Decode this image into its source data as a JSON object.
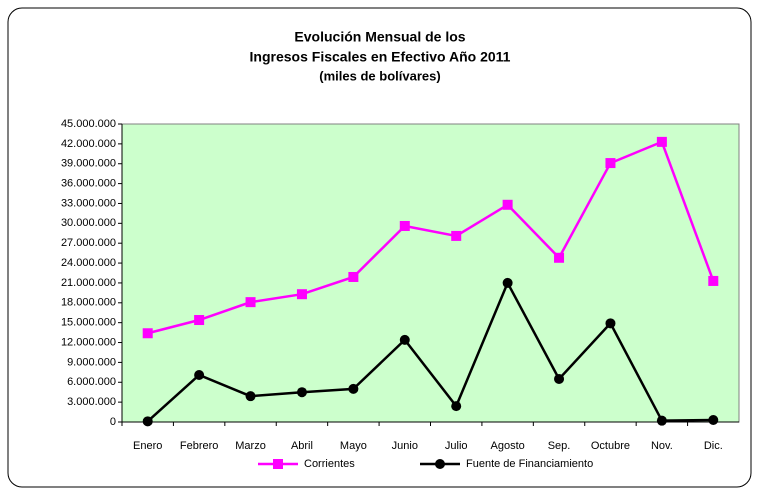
{
  "chart_data": {
    "type": "line",
    "title": [
      "Evolución Mensual de los",
      "Ingresos Fiscales en Efectivo Año 2011",
      "(miles de bolívares)"
    ],
    "categories": [
      "Enero",
      "Febrero",
      "Marzo",
      "Abril",
      "Mayo",
      "Junio",
      "Julio",
      "Agosto",
      "Sep.",
      "Octubre",
      "Nov.",
      "Dic."
    ],
    "series": [
      {
        "name": "Corrientes",
        "color": "#ff00ff",
        "marker": "square",
        "values": [
          13400000,
          15400000,
          18100000,
          19300000,
          21900000,
          29600000,
          28100000,
          32800000,
          24800000,
          39100000,
          42300000,
          21300000
        ]
      },
      {
        "name": "Fuente de Financiamiento",
        "color": "#000000",
        "marker": "circle",
        "values": [
          100000,
          7100000,
          3900000,
          4500000,
          5000000,
          12400000,
          2400000,
          21000000,
          6500000,
          14900000,
          200000,
          300000
        ]
      }
    ],
    "ylim": [
      0,
      45000000
    ],
    "yticks": [
      0,
      {
        "value": 3000000,
        "label": "3.000.000"
      },
      {
        "value": 6000000,
        "label": "6.000.000"
      },
      {
        "value": 9000000,
        "label": "9.000.000"
      },
      {
        "value": 12000000,
        "label": "12.000.000"
      },
      {
        "value": 15000000,
        "label": "15.000.000"
      },
      {
        "value": 18000000,
        "label": "18.000.000"
      },
      {
        "value": 21000000,
        "label": "21.000.000"
      },
      {
        "value": 24000000,
        "label": "24.000.000"
      },
      {
        "value": 27000000,
        "label": "27.000.000"
      },
      {
        "value": 30000000,
        "label": "30.000.000"
      },
      {
        "value": 33000000,
        "label": "33.000.000"
      },
      {
        "value": 36000000,
        "label": "36.000.000"
      },
      {
        "value": 39000000,
        "label": "39.000.000"
      },
      {
        "value": 42000000,
        "label": "42.000.000"
      },
      {
        "value": 45000000,
        "label": "45.000.000"
      }
    ],
    "plot_background": "#ccffcc",
    "legend": "bottom"
  }
}
